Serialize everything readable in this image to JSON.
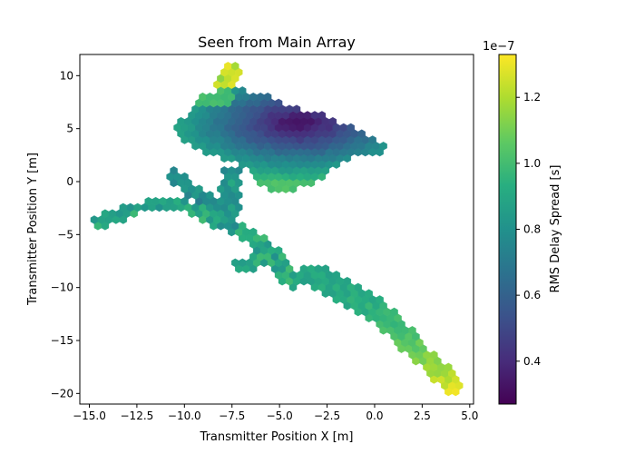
{
  "chart_data": {
    "type": "hexbin",
    "title": "Seen from Main Array",
    "xlabel": "Transmitter Position X [m]",
    "ylabel": "Transmitter Position Y [m]",
    "xlim": [
      -15.5,
      5.2
    ],
    "ylim": [
      -21,
      12
    ],
    "xticks": [
      -15.0,
      -12.5,
      -10.0,
      -7.5,
      -5.0,
      -2.5,
      0.0,
      2.5,
      5.0
    ],
    "xtick_labels": [
      "−15.0",
      "−12.5",
      "−10.0",
      "−7.5",
      "−5.0",
      "−2.5",
      "0.0",
      "2.5",
      "5.0"
    ],
    "yticks": [
      10,
      5,
      0,
      -5,
      -10,
      -15,
      -20
    ],
    "ytick_labels": [
      "10",
      "5",
      "0",
      "−5",
      "−10",
      "−15",
      "−20"
    ],
    "grid": false,
    "colorbar": {
      "label": "RMS Delay Spread [s]",
      "offset_text": "1e−7",
      "colormap": "viridis",
      "range": [
        2.7e-08,
        1.33e-07
      ],
      "ticks": [
        0.4,
        0.6,
        0.8,
        1.0,
        1.2
      ],
      "tick_labels": [
        "0.4",
        "0.6",
        "0.8",
        "1.0",
        "1.2"
      ]
    },
    "upper_cluster": {
      "x_range": [
        -10.5,
        0.6
      ],
      "y_range": [
        -1.2,
        8.8
      ],
      "min_delay_center": [
        -4.0,
        5.5
      ],
      "min_delay_value": 0.28,
      "value_description": "low delay spread (~0.3e-7 s) at upper right, rising to ~0.8-1.1e-7 s toward edges"
    },
    "paths": [
      {
        "name": "peak",
        "points": [
          [
            -8.0,
            9.2
          ],
          [
            -7.5,
            10.4
          ]
        ],
        "value_range": [
          1.15,
          1.3
        ]
      },
      {
        "name": "left-arm",
        "points": [
          [
            -14.5,
            -3.8
          ],
          [
            -12.5,
            -2.5
          ],
          [
            -10.5,
            -2.0
          ],
          [
            -8.5,
            -3.2
          ]
        ],
        "value_range": [
          0.82,
          0.95
        ]
      },
      {
        "name": "loop",
        "points": [
          [
            -10.5,
            0.5
          ],
          [
            -9.5,
            -1.0
          ],
          [
            -8.5,
            -2.5
          ]
        ],
        "value_range": [
          0.75,
          0.85
        ]
      },
      {
        "name": "spine",
        "points": [
          [
            -7.5,
            1.0
          ],
          [
            -7.6,
            -1.5
          ],
          [
            -7.8,
            -4.0
          ]
        ],
        "value_range": [
          0.78,
          0.88
        ]
      },
      {
        "name": "middle",
        "points": [
          [
            -8.5,
            -3.5
          ],
          [
            -6.5,
            -5.0
          ],
          [
            -5.0,
            -7.5
          ],
          [
            -4.3,
            -9.5
          ]
        ],
        "value_range": [
          0.8,
          1.0
        ]
      },
      {
        "name": "lower-branch",
        "points": [
          [
            -6.0,
            -7.5
          ],
          [
            -7.0,
            -8.0
          ]
        ],
        "value_range": [
          0.85,
          1.0
        ]
      },
      {
        "name": "lower-right",
        "points": [
          [
            -3.0,
            -8.8
          ],
          [
            -2.0,
            -10.0
          ],
          [
            0.0,
            -12.0
          ],
          [
            1.5,
            -14.5
          ],
          [
            2.5,
            -16.5
          ],
          [
            3.5,
            -18.0
          ],
          [
            4.1,
            -19.4
          ]
        ],
        "value_range": [
          0.9,
          1.28
        ]
      }
    ]
  }
}
